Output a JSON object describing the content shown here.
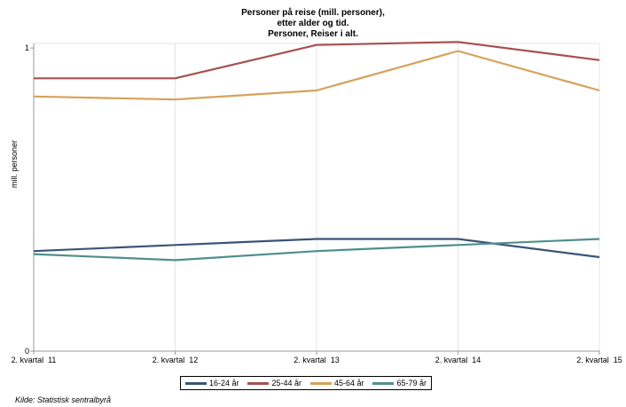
{
  "chart_data": {
    "type": "line",
    "title_lines": [
      "Personer på reise (mill. personer),",
      "etter alder og tid.",
      "Personer, Reiser i alt."
    ],
    "xlabel": "",
    "ylabel": "mill. personer",
    "categories": [
      "2. kvartal  11",
      "2. kvartal  12",
      "2. kvartal  13",
      "2. kvartal  14",
      "2. kvartal  15"
    ],
    "y_ticks": [
      0,
      1
    ],
    "ylim": [
      0,
      1.015
    ],
    "grid": "vertical",
    "legend_position": "bottom",
    "series": [
      {
        "name": "16-24 år",
        "color": "#3a5478",
        "values": [
          0.33,
          0.35,
          0.37,
          0.37,
          0.31
        ]
      },
      {
        "name": "25-44 år",
        "color": "#a84f4f",
        "values": [
          0.9,
          0.9,
          1.01,
          1.02,
          0.96
        ]
      },
      {
        "name": "45-64 år",
        "color": "#d6a25a",
        "values": [
          0.84,
          0.83,
          0.86,
          0.99,
          0.86
        ]
      },
      {
        "name": "65-79 år",
        "color": "#4f8f8c",
        "values": [
          0.32,
          0.3,
          0.33,
          0.35,
          0.37
        ]
      }
    ]
  },
  "source": "Kilde: Statistisk sentralbyrå"
}
